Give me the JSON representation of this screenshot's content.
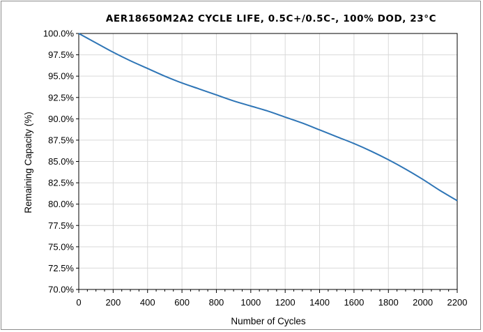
{
  "chart_data": {
    "type": "line",
    "title": "AER18650M2A2 CYCLE LIFE, 0.5C+/0.5C-, 100% DOD,  23°C",
    "xlabel": "Number of Cycles",
    "ylabel": "Remaining Capacity (%)",
    "xlim": [
      0,
      2200
    ],
    "ylim": [
      70,
      100
    ],
    "x_ticks": [
      0,
      200,
      400,
      600,
      800,
      1000,
      1200,
      1400,
      1600,
      1800,
      2000,
      2200
    ],
    "y_ticks": [
      70,
      72.5,
      75,
      77.5,
      80,
      82.5,
      85,
      87.5,
      90,
      92.5,
      95,
      97.5,
      100
    ],
    "y_tick_labels": [
      "70.0%",
      "72.5%",
      "75.0%",
      "77.5%",
      "80.0%",
      "82.5%",
      "85.0%",
      "87.5%",
      "90.0%",
      "92.5%",
      "95.0%",
      "97.5%",
      "100.0%"
    ],
    "grid": true,
    "legend": "none",
    "line_color": "#2e75b6",
    "grid_color": "#d9d9d9",
    "series": [
      {
        "x": [
          0,
          100,
          200,
          300,
          400,
          500,
          600,
          700,
          800,
          900,
          1000,
          1100,
          1200,
          1300,
          1400,
          1500,
          1600,
          1700,
          1800,
          1900,
          2000,
          2100,
          2200
        ],
        "values": [
          100,
          98.9,
          97.8,
          96.8,
          95.9,
          95.0,
          94.2,
          93.5,
          92.8,
          92.1,
          91.5,
          90.9,
          90.2,
          89.5,
          88.7,
          87.9,
          87.1,
          86.2,
          85.2,
          84.1,
          82.9,
          81.6,
          80.4
        ]
      }
    ]
  }
}
